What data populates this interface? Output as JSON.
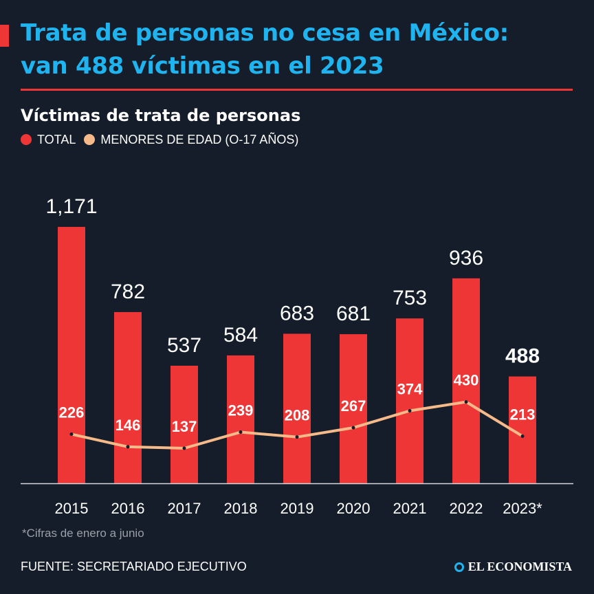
{
  "header": {
    "title_line1": "Trata de personas no cesa en México:",
    "title_line2": "van 488 víctimas en el 2023"
  },
  "colors": {
    "accent": "#ee3636",
    "title": "#1fb4f0",
    "minors_line": "#f5b98a",
    "background": "#141d29"
  },
  "chart_data": {
    "type": "bar",
    "title": "Víctimas de trata de personas",
    "categories": [
      "2015",
      "2016",
      "2017",
      "2018",
      "2019",
      "2020",
      "2021",
      "2022",
      "2023*"
    ],
    "series": [
      {
        "name": "TOTAL",
        "type": "bar",
        "color": "#ee3636",
        "values": [
          1171,
          782,
          537,
          584,
          683,
          681,
          753,
          936,
          488
        ],
        "labels": [
          "1,171",
          "782",
          "537",
          "584",
          "683",
          "681",
          "753",
          "936",
          "488"
        ]
      },
      {
        "name": "MENORES DE EDAD (O-17 AÑOS)",
        "type": "line",
        "color": "#f5b98a",
        "values": [
          226,
          146,
          137,
          239,
          208,
          267,
          374,
          430,
          213
        ],
        "labels": [
          "226",
          "146",
          "137",
          "239",
          "208",
          "267",
          "374",
          "430",
          "213"
        ]
      }
    ],
    "ylim": [
      0,
      1171
    ],
    "grid": false,
    "legend": "top-left",
    "highlight_last": true
  },
  "footnote": "*Cifras de enero a junio",
  "source": "FUENTE: SECRETARIADO EJECUTIVO",
  "brand": "EL ECONOMISTA"
}
